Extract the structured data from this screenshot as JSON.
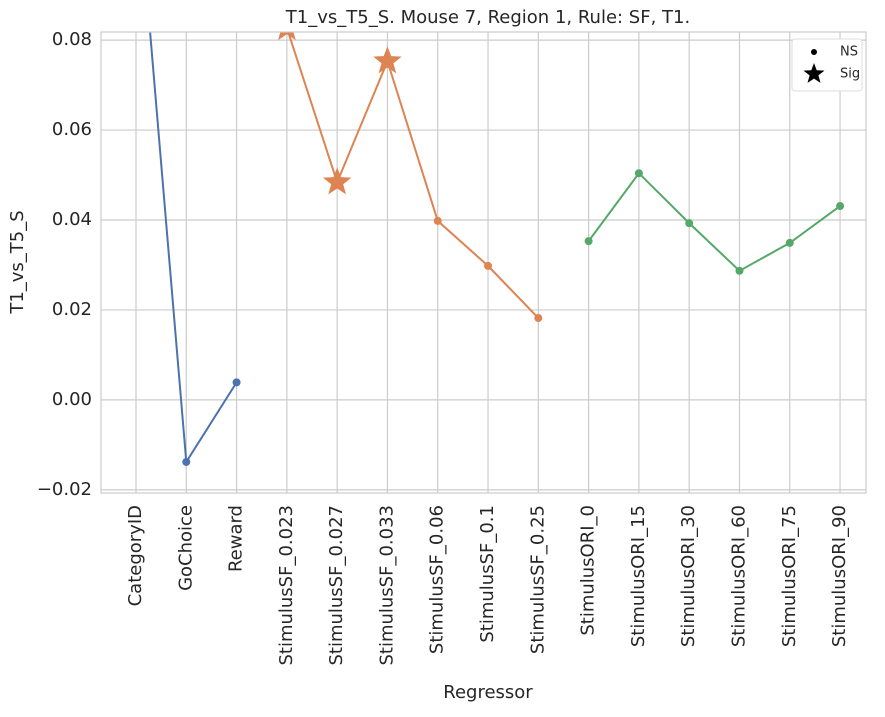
{
  "chart_data": {
    "type": "line",
    "title": "T1_vs_T5_S. Mouse 7, Region 1, Rule: SF, T1.",
    "x_label": "Regressor",
    "y_label": "T1_vs_T5_S",
    "categories": [
      "CategoryID",
      "GoChoice",
      "Reward",
      "StimulusSF_0.023",
      "StimulusSF_0.027",
      "StimulusSF_0.033",
      "StimulusSF_0.06",
      "StimulusSF_0.1",
      "StimulusSF_0.25",
      "StimulusORI_0",
      "StimulusORI_15",
      "StimulusORI_30",
      "StimulusORI_60",
      "StimulusORI_75",
      "StimulusORI_90"
    ],
    "series": [
      {
        "color": "#4c72b0",
        "values": [
          0.119,
          -0.0138,
          0.0039,
          null,
          null,
          null,
          null,
          null,
          null,
          null,
          null,
          null,
          null,
          null,
          null
        ],
        "significant": [
          false,
          false,
          false,
          false,
          false,
          false,
          false,
          false,
          false,
          false,
          false,
          false,
          false,
          false,
          false
        ]
      },
      {
        "color": "#dd8452",
        "values": [
          null,
          null,
          null,
          0.0827,
          0.0484,
          0.0753,
          0.0398,
          0.0298,
          0.0182,
          null,
          null,
          null,
          null,
          null,
          null
        ],
        "significant": [
          false,
          false,
          false,
          true,
          true,
          true,
          false,
          false,
          false,
          false,
          false,
          false,
          false,
          false,
          false
        ]
      },
      {
        "color": "#55a868",
        "values": [
          null,
          null,
          null,
          null,
          null,
          null,
          null,
          null,
          null,
          0.0353,
          0.0504,
          0.0393,
          0.0287,
          0.0349,
          0.0431
        ],
        "significant": [
          false,
          false,
          false,
          false,
          false,
          false,
          false,
          false,
          false,
          false,
          false,
          false,
          false,
          false,
          false
        ]
      }
    ],
    "marker_legend": [
      {
        "name": "NS",
        "marker": "dot"
      },
      {
        "name": "Sig",
        "marker": "star"
      }
    ],
    "ylim": [
      -0.0207,
      0.0818
    ],
    "yticks": [
      {
        "value": -0.02,
        "label": "−0.02"
      },
      {
        "value": 0,
        "label": "0.00"
      },
      0.02,
      0.04,
      0.06,
      0.08
    ],
    "grid": true,
    "legend_position": "upper right"
  }
}
